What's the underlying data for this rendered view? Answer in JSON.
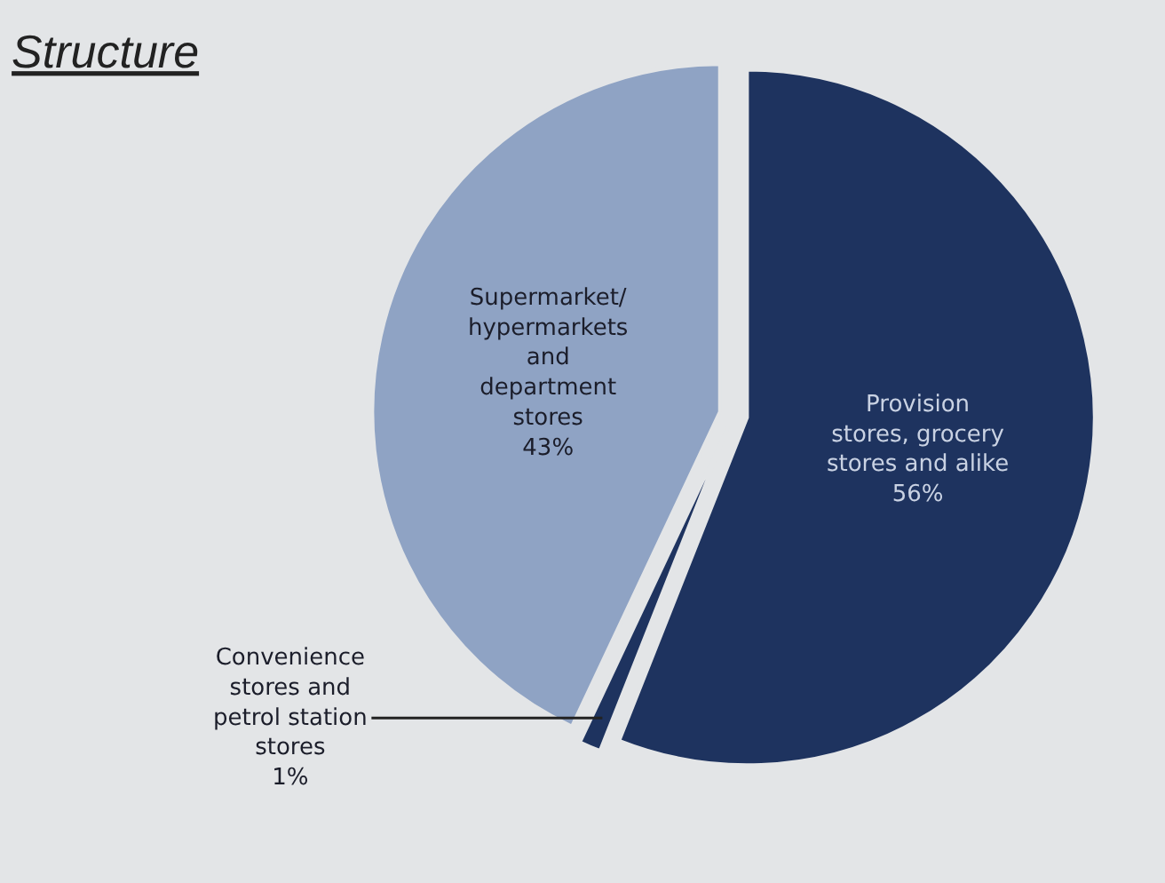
{
  "chart_data": {
    "type": "pie",
    "title": "Structure",
    "categories": [
      "Provision\nstores, grocery\nstores and alike",
      "Convenience\nstores and\npetrol station\nstores",
      "Supermarket/\nhypermarkets\nand\ndepartment\nstores"
    ],
    "values": [
      56,
      1,
      43
    ],
    "value_labels": [
      "56%",
      "1%",
      "43%"
    ],
    "colors": [
      "#1e335f",
      "#1e335f",
      "#8fa3c4"
    ],
    "legend": false
  }
}
